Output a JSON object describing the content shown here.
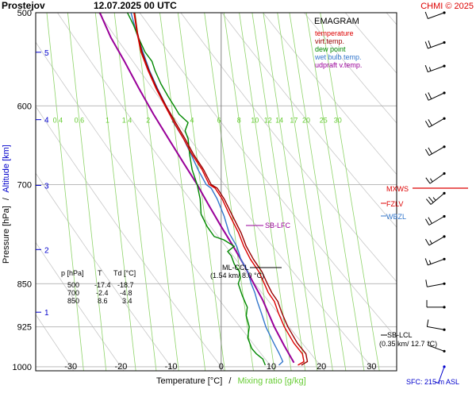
{
  "header": {
    "station": "Prostejov",
    "datetime": "12.07.2025 00 UTC",
    "credit": "CHMI © 2025"
  },
  "legend": {
    "title": "EMAGRAM",
    "items": [
      {
        "label": "temperature",
        "color": "#dd0000"
      },
      {
        "label": "virt.temp.",
        "color": "#990000"
      },
      {
        "label": "dew point",
        "color": "#008800"
      },
      {
        "label": "wet bulb temp.",
        "color": "#3377cc"
      },
      {
        "label": "udpraft v.temp.",
        "color": "#990099"
      }
    ]
  },
  "axes": {
    "y_label_pressure": "Pressure [hPa]",
    "y_label_sep": "/",
    "y_label_altitude": "Altitude [km]",
    "x_label_temp": "Temperature [°C]",
    "x_label_sep": "/",
    "x_label_mixing": "Mixing ratio [g/kg]",
    "pressure_ticks": [
      "500",
      "600",
      "700",
      "850",
      "925",
      "1000"
    ],
    "temp_ticks": [
      "-30",
      "-20",
      "-10",
      "0",
      "10",
      "20",
      "30"
    ],
    "altitude_ticks": [
      "5",
      "4",
      "3",
      "2",
      "1"
    ],
    "mixing_ratio_labels": [
      "0.4",
      "0.6",
      "1",
      "1.4",
      "2",
      "3",
      "4",
      "6",
      "8",
      "10",
      "12",
      "14",
      "17",
      "20",
      "25",
      "30"
    ]
  },
  "table": {
    "headers": [
      "p [hPa]",
      "T",
      "Td [°C]"
    ],
    "rows": [
      [
        "500",
        "-17.4",
        "-18.7"
      ],
      [
        "700",
        "-2.4",
        "-4.8"
      ],
      [
        "850",
        "8.6",
        "3.4"
      ]
    ]
  },
  "annotations": {
    "sb_lfc": "SB-LFC",
    "ml_ccl": "ML-CCL",
    "ml_ccl_detail": "(1.54 km/ 8.0 °C)",
    "sb_lcl": "SB-LCL",
    "sb_lcl_detail": "(0.35 km/ 12.7 °C)",
    "mxws": "MXWS",
    "fzlv": "FZLV",
    "wbzl": "WBZL",
    "sfc": "SFC: 215 m ASL"
  },
  "chart_data": {
    "type": "line",
    "title": "Prostejov 12.07.2025 00 UTC",
    "xlabel": "Temperature [°C] / Mixing ratio [g/kg]",
    "ylabel": "Pressure [hPa] / Altitude [km]",
    "xlim": [
      -37,
      35
    ],
    "ylim": [
      1008,
      500
    ],
    "y_scale": "log",
    "grid": true,
    "legend_position": "top-right",
    "series": [
      {
        "name": "temperature",
        "color": "#dd0000",
        "points": [
          [
            15.3,
            997
          ],
          [
            16.5,
            990
          ],
          [
            16.2,
            975
          ],
          [
            14.5,
            955
          ],
          [
            12.6,
            925
          ],
          [
            11.4,
            900
          ],
          [
            10.6,
            880
          ],
          [
            9.4,
            865
          ],
          [
            8.6,
            850
          ],
          [
            7.5,
            830
          ],
          [
            5.8,
            810
          ],
          [
            4.5,
            790
          ],
          [
            3.5,
            770
          ],
          [
            1.8,
            745
          ],
          [
            0.2,
            720
          ],
          [
            -1.2,
            705
          ],
          [
            -2.4,
            700
          ],
          [
            -3.8,
            680
          ],
          [
            -5.8,
            660
          ],
          [
            -7.5,
            640
          ],
          [
            -9.4,
            620
          ],
          [
            -11.2,
            600
          ],
          [
            -13.0,
            580
          ],
          [
            -14.6,
            560
          ],
          [
            -16.0,
            540
          ],
          [
            -16.8,
            520
          ],
          [
            -17.4,
            500
          ]
        ]
      },
      {
        "name": "virt.temp.",
        "color": "#990000",
        "points": [
          [
            16.0,
            997
          ],
          [
            17.2,
            990
          ],
          [
            16.9,
            975
          ],
          [
            15.2,
            955
          ],
          [
            13.3,
            925
          ],
          [
            12.1,
            900
          ],
          [
            11.3,
            880
          ],
          [
            10.1,
            865
          ],
          [
            9.2,
            850
          ],
          [
            8.1,
            830
          ],
          [
            6.4,
            810
          ],
          [
            5.0,
            790
          ],
          [
            4.0,
            770
          ],
          [
            2.3,
            745
          ],
          [
            0.6,
            720
          ],
          [
            -0.8,
            705
          ],
          [
            -2.0,
            700
          ],
          [
            -3.5,
            680
          ],
          [
            -5.5,
            660
          ],
          [
            -7.2,
            640
          ],
          [
            -9.1,
            620
          ],
          [
            -11.0,
            600
          ],
          [
            -12.8,
            580
          ],
          [
            -14.4,
            560
          ],
          [
            -15.8,
            540
          ],
          [
            -16.7,
            520
          ],
          [
            -17.3,
            500
          ]
        ]
      },
      {
        "name": "dew point",
        "color": "#008800",
        "points": [
          [
            8.8,
            997
          ],
          [
            8.3,
            985
          ],
          [
            7.0,
            975
          ],
          [
            6.1,
            965
          ],
          [
            5.3,
            945
          ],
          [
            5.6,
            925
          ],
          [
            5.0,
            905
          ],
          [
            5.2,
            890
          ],
          [
            4.2,
            870
          ],
          [
            3.4,
            850
          ],
          [
            3.8,
            840
          ],
          [
            3.6,
            830
          ],
          [
            2.6,
            818
          ],
          [
            2.0,
            805
          ],
          [
            1.3,
            798
          ],
          [
            2.6,
            790
          ],
          [
            0.5,
            780
          ],
          [
            -1.4,
            775
          ],
          [
            -2.8,
            760
          ],
          [
            -4.0,
            742
          ],
          [
            -4.2,
            720
          ],
          [
            -4.8,
            700
          ],
          [
            -5.8,
            680
          ],
          [
            -6.3,
            660
          ],
          [
            -6.6,
            640
          ],
          [
            -7.2,
            630
          ],
          [
            -6.6,
            620
          ],
          [
            -8.4,
            610
          ],
          [
            -9.4,
            600
          ],
          [
            -10.5,
            590
          ],
          [
            -12.0,
            575
          ],
          [
            -13.2,
            560
          ],
          [
            -13.8,
            550
          ],
          [
            -15.2,
            540
          ],
          [
            -16.5,
            525
          ],
          [
            -17.5,
            512
          ],
          [
            -18.7,
            500
          ]
        ]
      },
      {
        "name": "wet bulb temp.",
        "color": "#3377cc",
        "points": [
          [
            11.5,
            997
          ],
          [
            12.3,
            990
          ],
          [
            11.6,
            975
          ],
          [
            10.5,
            955
          ],
          [
            8.9,
            925
          ],
          [
            8.0,
            900
          ],
          [
            7.2,
            880
          ],
          [
            6.7,
            865
          ],
          [
            6.0,
            850
          ],
          [
            5.3,
            830
          ],
          [
            3.9,
            810
          ],
          [
            3.1,
            790
          ],
          [
            1.6,
            770
          ],
          [
            0.6,
            745
          ],
          [
            -0.8,
            720
          ],
          [
            -2.0,
            705
          ],
          [
            -3.0,
            700
          ],
          [
            -4.6,
            680
          ],
          [
            -6.0,
            660
          ],
          [
            -7.5,
            640
          ],
          [
            -9.5,
            620
          ],
          [
            -11.0,
            600
          ],
          [
            -12.7,
            580
          ],
          [
            -14.3,
            560
          ],
          [
            -15.6,
            540
          ],
          [
            -16.9,
            520
          ],
          [
            -18.0,
            500
          ]
        ]
      },
      {
        "name": "udpraft v.temp.",
        "color": "#990099",
        "points": [
          [
            14.5,
            992
          ],
          [
            12.6,
            960
          ],
          [
            10.6,
            925
          ],
          [
            9.4,
            900
          ],
          [
            8.3,
            878
          ],
          [
            6.5,
            850
          ],
          [
            4.6,
            820
          ],
          [
            2.4,
            790
          ],
          [
            0.0,
            760
          ],
          [
            -2.4,
            730
          ],
          [
            -4.8,
            700
          ],
          [
            -7.6,
            670
          ],
          [
            -10.5,
            640
          ],
          [
            -13.5,
            610
          ],
          [
            -16.4,
            580
          ],
          [
            -19.3,
            550
          ],
          [
            -22.0,
            525
          ],
          [
            -24.2,
            500
          ]
        ]
      }
    ],
    "dry_adiabats": [
      [
        1000,
        -30
      ],
      [
        1000,
        -20
      ],
      [
        1000,
        -10
      ],
      [
        1000,
        0
      ],
      [
        1000,
        10
      ],
      [
        1000,
        20
      ],
      [
        1000,
        30
      ],
      [
        1000,
        40
      ],
      [
        1000,
        50
      ],
      [
        1000,
        60
      ],
      [
        1000,
        70
      ],
      [
        1000,
        80
      ],
      [
        1000,
        90
      ],
      [
        1000,
        100
      ],
      [
        1000,
        110
      ],
      [
        1000,
        120
      ]
    ],
    "mixing_ratio_lines_g_kg": [
      0.4,
      0.6,
      1,
      1.4,
      2,
      3,
      4,
      6,
      8,
      10,
      12,
      14,
      17,
      20,
      25,
      30
    ],
    "levels": {
      "sb_lfc_hPa": 775,
      "ml_ccl_hPa": 850,
      "sb_lcl_hPa": 975
    },
    "wind_barbs": [
      {
        "p": 500,
        "dir": 250,
        "kt": 10
      },
      {
        "p": 530,
        "dir": 250,
        "kt": 20
      },
      {
        "p": 555,
        "dir": 250,
        "kt": 15
      },
      {
        "p": 585,
        "dir": 245,
        "kt": 20
      },
      {
        "p": 615,
        "dir": 240,
        "kt": 20
      },
      {
        "p": 650,
        "dir": 240,
        "kt": 20
      },
      {
        "p": 685,
        "dir": 235,
        "kt": 15
      },
      {
        "p": 712,
        "dir": 230,
        "kt": 25
      },
      {
        "p": 745,
        "dir": 240,
        "kt": 20
      },
      {
        "p": 775,
        "dir": 240,
        "kt": 15
      },
      {
        "p": 810,
        "dir": 250,
        "kt": 15
      },
      {
        "p": 850,
        "dir": 260,
        "kt": 10
      },
      {
        "p": 890,
        "dir": 270,
        "kt": 10
      },
      {
        "p": 930,
        "dir": 280,
        "kt": 10
      },
      {
        "p": 970,
        "dir": 290,
        "kt": 5
      },
      {
        "p": 1000,
        "dir": 200,
        "kt": 5
      }
    ]
  }
}
